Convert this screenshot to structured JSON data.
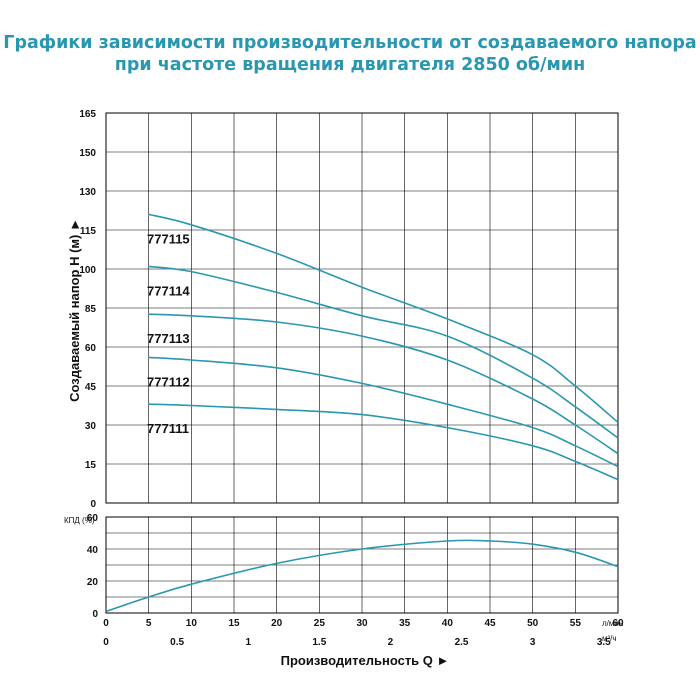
{
  "title": {
    "line1": "Графики зависимости производительности от создаваемого напора",
    "line2": "при частоте вращения двигателя 2850 об/мин"
  },
  "colors": {
    "curve": "#2a97b1",
    "title": "#2a97b1",
    "grid": "#000000"
  },
  "chart_data": [
    {
      "type": "line",
      "ylabel": "Создаваемый напор H (м) ►",
      "ylim": [
        0,
        165
      ],
      "yticks": [
        0,
        15,
        30,
        45,
        60,
        85,
        100,
        115,
        130,
        150,
        165
      ],
      "xlim": [
        0,
        60
      ],
      "grid": true,
      "series": [
        {
          "name": "777115",
          "x": [
            5,
            10,
            20,
            30,
            40,
            50,
            55,
            60
          ],
          "y": [
            121,
            117,
            106,
            93,
            78,
            57,
            45,
            31
          ]
        },
        {
          "name": "777114",
          "x": [
            5,
            10,
            20,
            30,
            40,
            50,
            55,
            60
          ],
          "y": [
            101,
            99,
            91,
            80,
            67,
            48,
            37,
            25
          ]
        },
        {
          "name": "777113",
          "x": [
            5,
            10,
            20,
            30,
            40,
            50,
            55,
            60
          ],
          "y": [
            81,
            80,
            76,
            67,
            55,
            40,
            30,
            19
          ]
        },
        {
          "name": "777112",
          "x": [
            5,
            10,
            20,
            30,
            40,
            50,
            55,
            60
          ],
          "y": [
            56,
            55,
            52,
            46,
            38,
            29,
            22,
            14
          ]
        },
        {
          "name": "777111",
          "x": [
            5,
            10,
            20,
            30,
            40,
            50,
            55,
            60
          ],
          "y": [
            38,
            37.5,
            36,
            34,
            29,
            22,
            16,
            9
          ]
        }
      ]
    },
    {
      "type": "line",
      "ylabel": "КПД (%)",
      "ylim": [
        0,
        60
      ],
      "yticks": [
        0,
        20,
        40,
        60
      ],
      "grid": true,
      "series": [
        {
          "x": [
            0,
            5,
            10,
            20,
            30,
            40,
            45,
            50,
            55,
            60
          ],
          "y": [
            1,
            10,
            18,
            31,
            40,
            45,
            45,
            43,
            38,
            29
          ]
        }
      ],
      "x_axis": {
        "flow_lmin_ticks": [
          0,
          5,
          10,
          15,
          20,
          25,
          30,
          35,
          40,
          45,
          50,
          55,
          60
        ],
        "flow_lmin_unit": "л/мин",
        "flow_m3h_ticks": [
          "0",
          "0.5",
          "1",
          "1.5",
          "2",
          "2.5",
          "3",
          "3.5"
        ],
        "flow_m3h_unit": "м³/ч",
        "xlabel": "Производительность Q ►"
      }
    }
  ]
}
